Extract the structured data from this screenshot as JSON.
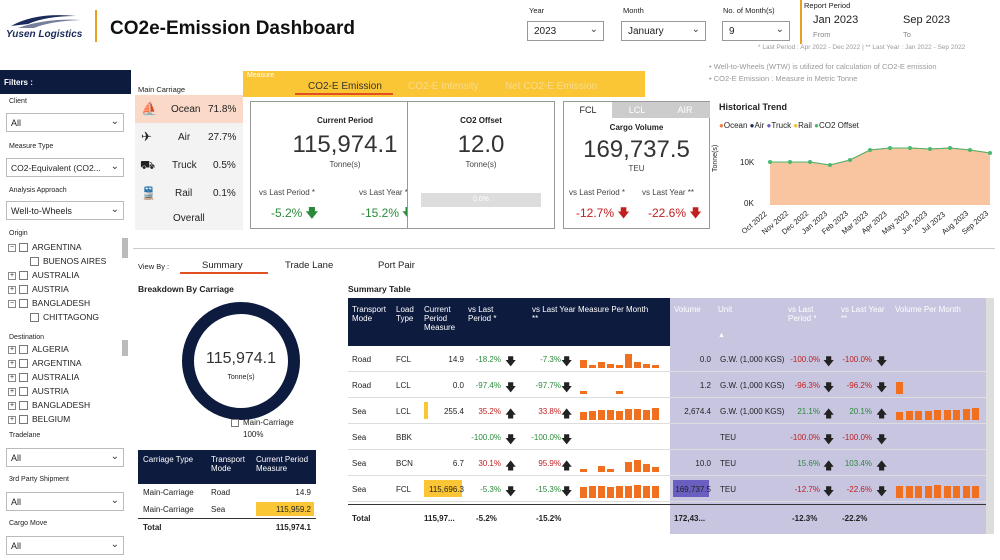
{
  "header": {
    "logo_text": "Yusen Logistics",
    "title": "CO2e-Emission Dashboard",
    "year_label": "Year",
    "year_value": "2023",
    "month_label": "Month",
    "month_value": "January",
    "nmonths_label": "No. of Month(s)",
    "nmonths_value": "9",
    "report_period_label": "Report Period",
    "from_value": "Jan 2023",
    "from_label": "From",
    "to_value": "Sep 2023",
    "to_label": "To",
    "last_note": "* Last Period : Apr 2022 - Dec 2022 | ** Last Year : Jan 2022 - Sep 2022",
    "note1": "Well-to-Wheels (WTW) is utilized for calculation of CO2-E emission",
    "note2": "CO2-E Emission : Measure in Metric Tonne"
  },
  "filters": {
    "title": "Filters :",
    "client_label": "Client",
    "client_value": "All",
    "measure_type_label": "Measure Type",
    "measure_type_value": "CO2-Equivalent (CO2...",
    "approach_label": "Analysis Approach",
    "approach_value": "Well-to-Wheels",
    "origin_label": "Origin",
    "origin_items": [
      "ARGENTINA",
      "BUENOS AIRES",
      "AUSTRALIA",
      "AUSTRIA",
      "BANGLADESH",
      "CHITTAGONG"
    ],
    "dest_label": "Destination",
    "dest_items": [
      "ALGERIA",
      "ARGENTINA",
      "AUSTRALIA",
      "AUSTRIA",
      "BANGLADESH",
      "BELGIUM"
    ],
    "tradelane_label": "Tradelane",
    "tradelane_value": "All",
    "party_label": "3rd Party Shipment",
    "party_value": "All",
    "cargo_label": "Cargo Move",
    "cargo_value": "All"
  },
  "main_carriage": {
    "title": "Main Carriage",
    "items": [
      {
        "label": "Ocean",
        "pct": "71.8%"
      },
      {
        "label": "Air",
        "pct": "27.7%"
      },
      {
        "label": "Truck",
        "pct": "0.5%"
      },
      {
        "label": "Rail",
        "pct": "0.1%"
      }
    ],
    "overall": "Overall"
  },
  "measure": {
    "label": "Measure",
    "tabs": [
      "CO2-E Emission",
      "CO2-E Intensity",
      "Net CO2-E Emission"
    ]
  },
  "current": {
    "title": "Current Period",
    "value": "115,974.1",
    "unit": "Tonne(s)",
    "lp_label": "vs Last Period *",
    "lp": "-5.2%",
    "ly_label": "vs Last Year **",
    "ly": "-15.2%"
  },
  "offset": {
    "title": "CO2 Offset",
    "value": "12.0",
    "unit": "Tonne(s)",
    "bar": "0.0%"
  },
  "cargo": {
    "tabs": [
      "FCL",
      "LCL",
      "AIR"
    ],
    "title": "Cargo Volume",
    "value": "169,737.5",
    "unit": "TEU",
    "lp_label": "vs Last Period *",
    "lp": "-12.7%",
    "ly_label": "vs Last Year **",
    "ly": "-22.6%"
  },
  "trend": {
    "title": "Historical Trend",
    "legend": [
      "Ocean",
      "Air",
      "Truck",
      "Rail",
      "CO2 Offset"
    ],
    "legend_colors": [
      "#f08040",
      "#1a2a5a",
      "#7060c0",
      "#f0c030",
      "#4ab870"
    ],
    "ylabel": "Tonne(s)",
    "yticks": [
      "10K",
      "0K"
    ],
    "months": [
      "Oct 2022",
      "Nov 2022",
      "Dec 2022",
      "Jan 2023",
      "Feb 2023",
      "Mar 2023",
      "Apr 2023",
      "May 2023",
      "Jun 2023",
      "Jul 2023",
      "Aug 2023",
      "Sep 2023"
    ]
  },
  "viewby": {
    "label": "View By :",
    "tabs": [
      "Summary",
      "Trade Lane",
      "Port Pair"
    ]
  },
  "breakdown": {
    "title": "Breakdown By Carriage",
    "value": "115,974.1",
    "unit": "Tonne(s)",
    "legend": "Main-Carriage",
    "legend_pct": "100%",
    "headers": [
      "Carriage Type",
      "Transport Mode",
      "Current Period Measure"
    ],
    "rows": [
      [
        "Main-Carriage",
        "Road",
        "14.9"
      ],
      [
        "Main-Carriage",
        "Sea",
        "115,959.2"
      ]
    ],
    "total_label": "Total",
    "total": "115,974.1"
  },
  "summary": {
    "title": "Summary Table",
    "headers": [
      "Transport Mode",
      "Load Type",
      "Current Period Measure",
      "vs Last Period *",
      "vs Last Year **",
      "Measure Per Month",
      "Volume",
      "Unit",
      "vs Last Period *",
      "vs Last Year **",
      "Volume Per Month"
    ],
    "rows": [
      [
        "Road",
        "FCL",
        "14.9",
        "-18.2%",
        "-7.3%",
        "0.0",
        "G.W. (1,000 KGS)",
        "-100.0%",
        "-100.0%"
      ],
      [
        "Road",
        "LCL",
        "0.0",
        "-97.4%",
        "-97.7%",
        "1.2",
        "G.W. (1,000 KGS)",
        "-96.3%",
        "-96.2%"
      ],
      [
        "Sea",
        "LCL",
        "255.4",
        "35.2%",
        "33.8%",
        "2,674.4",
        "G.W. (1,000 KGS)",
        "21.1%",
        "20.1%"
      ],
      [
        "Sea",
        "BBK",
        "",
        "-100.0%",
        "-100.0%",
        "",
        "TEU",
        "-100.0%",
        "-100.0%"
      ],
      [
        "Sea",
        "BCN",
        "6.7",
        "30.1%",
        "95.9%",
        "10.0",
        "TEU",
        "15.6%",
        "103.4%"
      ],
      [
        "Sea",
        "FCL",
        "115,696.3",
        "-5.3%",
        "-15.3%",
        "169,737.5",
        "TEU",
        "-12.7%",
        "-22.6%"
      ]
    ],
    "total": [
      "Total",
      "115,97...",
      "-5.2%",
      "-15.2%",
      "172,43...",
      "-12.3%",
      "-22.2%"
    ]
  }
}
